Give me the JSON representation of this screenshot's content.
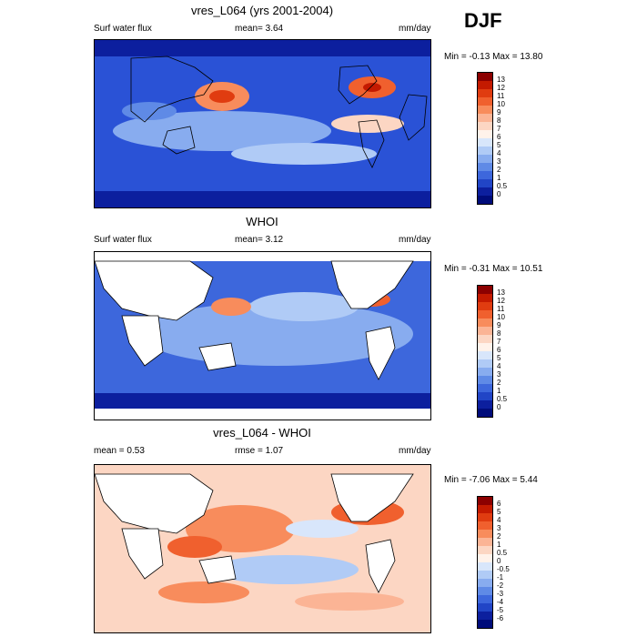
{
  "season": "DJF",
  "panels": [
    {
      "title": "vres_L064 (yrs 2001-2004)",
      "left_label": "Surf water flux",
      "mid_label": "mean=   3.64",
      "units": "mm/day",
      "minmax": "Min =  -0.13 Max =  13.80",
      "kind": "field",
      "colorbar_labels": [
        "13",
        "12",
        "11",
        "10",
        "9",
        "8",
        "7",
        "6",
        "5",
        "4",
        "3",
        "2",
        "1",
        "0.5",
        "0"
      ],
      "colors": [
        "#8c0000",
        "#c41a00",
        "#e03c10",
        "#f0602e",
        "#f88c5c",
        "#fbb495",
        "#fcd6c3",
        "#fff2ea",
        "#d8e6fb",
        "#b0cbf6",
        "#88acef",
        "#5f8ae6",
        "#3d67dc",
        "#2145c6",
        "#0c1f9e",
        "#000c7a"
      ]
    },
    {
      "title": "WHOI",
      "left_label": "Surf water flux",
      "mid_label": "mean=   3.12",
      "units": "mm/day",
      "minmax": "Min =  -0.31 Max =  10.51",
      "kind": "field",
      "colorbar_labels": [
        "13",
        "12",
        "11",
        "10",
        "9",
        "8",
        "7",
        "6",
        "5",
        "4",
        "3",
        "2",
        "1",
        "0.5",
        "0"
      ],
      "colors": [
        "#8c0000",
        "#c41a00",
        "#e03c10",
        "#f0602e",
        "#f88c5c",
        "#fbb495",
        "#fcd6c3",
        "#fff2ea",
        "#d8e6fb",
        "#b0cbf6",
        "#88acef",
        "#5f8ae6",
        "#3d67dc",
        "#2145c6",
        "#0c1f9e",
        "#000c7a"
      ]
    },
    {
      "title": "vres_L064 - WHOI",
      "left_label": "mean =   0.53",
      "mid_label": "rmse =   1.07",
      "units": "mm/day",
      "minmax": "Min =  -7.06 Max =   5.44",
      "kind": "diff",
      "colorbar_labels": [
        "6",
        "5",
        "4",
        "3",
        "2",
        "1",
        "0.5",
        "0",
        "-0.5",
        "-1",
        "-2",
        "-3",
        "-4",
        "-5",
        "-6"
      ],
      "colors": [
        "#8c0000",
        "#c41a00",
        "#e03c10",
        "#f0602e",
        "#f88c5c",
        "#fbb495",
        "#fcd6c3",
        "#fff2ea",
        "#d8e6fb",
        "#b0cbf6",
        "#88acef",
        "#5f8ae6",
        "#3d67dc",
        "#2145c6",
        "#0c1f9e",
        "#000c7a"
      ]
    }
  ]
}
